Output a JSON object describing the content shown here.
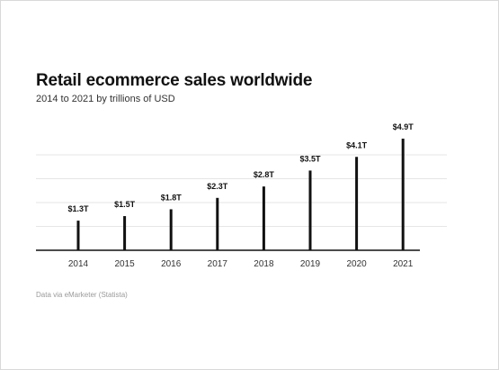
{
  "chart_data": {
    "type": "bar",
    "title": "Retail ecommerce sales worldwide",
    "subtitle": "2014 to 2021 by trillions of USD",
    "source": "Data via eMarketer (Statista)",
    "categories": [
      "2014",
      "2015",
      "2016",
      "2017",
      "2018",
      "2019",
      "2020",
      "2021"
    ],
    "values": [
      1.3,
      1.5,
      1.8,
      2.3,
      2.8,
      3.5,
      4.1,
      4.9
    ],
    "data_labels": [
      "$1.3T",
      "$1.5T",
      "$1.8T",
      "$2.3T",
      "$2.8T",
      "$3.5T",
      "$4.1T",
      "$4.9T"
    ],
    "xlabel": "",
    "ylabel": "",
    "ylim": [
      0,
      5.0
    ],
    "grid": true,
    "legend": "none",
    "colors": {
      "bar": "#111111",
      "grid": "#e6e6e6",
      "axis": "#111111"
    }
  }
}
